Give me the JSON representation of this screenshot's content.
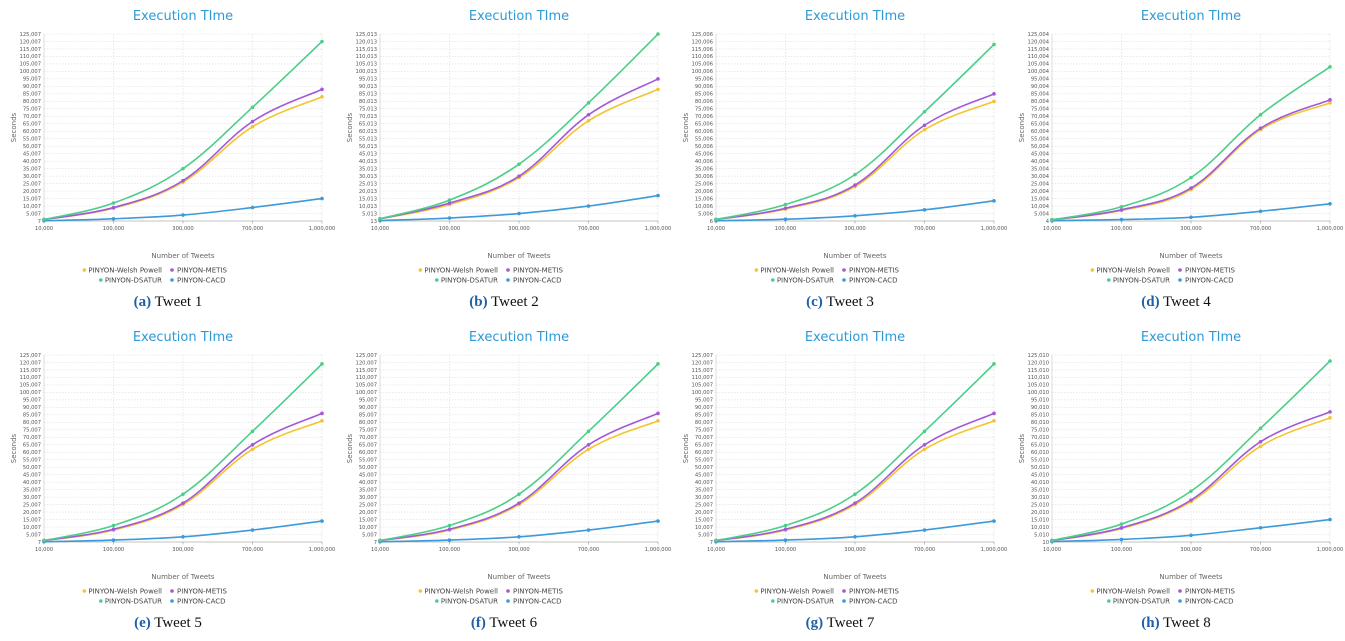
{
  "colors": {
    "PINYON-Welsh Powell": "#f4c430",
    "PINYON-METIS": "#a259d9",
    "PINYON-DSATUR": "#4cce8a",
    "PINYON-CACD": "#3d9ad8"
  },
  "chart_data": [
    {
      "type": "line",
      "title": "Execution TIme",
      "xlabel": "Number of Tweets",
      "ylabel": "Seconds",
      "caption_label": "(a)",
      "caption_text": "Tweet 1",
      "categories": [
        "10,000",
        "100,000",
        "300,000",
        "700,000",
        "1,000,000"
      ],
      "y_ticks": [
        "7",
        "5,007",
        "10,007",
        "15,007",
        "20,007",
        "25,007",
        "30,007",
        "35,007",
        "40,007",
        "45,007",
        "50,007",
        "55,007",
        "60,007",
        "65,007",
        "70,007",
        "75,007",
        "80,007",
        "85,007",
        "90,007",
        "95,007",
        "100,007",
        "105,007",
        "110,007",
        "115,007",
        "120,007",
        "125,007"
      ],
      "ylim": [
        7,
        125007
      ],
      "legend": "bottom",
      "series": [
        {
          "name": "PINYON-Welsh Powell",
          "values": [
            1000,
            8500,
            26000,
            63000,
            83000
          ]
        },
        {
          "name": "PINYON-METIS",
          "values": [
            1000,
            9000,
            27000,
            66500,
            88000
          ]
        },
        {
          "name": "PINYON-DSATUR",
          "values": [
            1000,
            12000,
            35000,
            76000,
            120000
          ]
        },
        {
          "name": "PINYON-CACD",
          "values": [
            200,
            1500,
            4000,
            9000,
            15000
          ]
        }
      ]
    },
    {
      "type": "line",
      "title": "Execution TIme",
      "xlabel": "Number of Tweets",
      "ylabel": "Seconds",
      "caption_label": "(b)",
      "caption_text": "Tweet 2",
      "categories": [
        "10,000",
        "100,000",
        "300,000",
        "700,000",
        "1,000,000"
      ],
      "y_ticks": [
        "13",
        "5,013",
        "10,013",
        "15,013",
        "20,013",
        "25,013",
        "30,013",
        "35,013",
        "40,013",
        "45,013",
        "50,013",
        "55,013",
        "60,013",
        "65,013",
        "70,013",
        "75,013",
        "80,013",
        "85,013",
        "90,013",
        "95,013",
        "100,013",
        "105,013",
        "110,013",
        "115,013",
        "120,013",
        "125,013"
      ],
      "ylim": [
        13,
        125013
      ],
      "legend": "bottom",
      "series": [
        {
          "name": "PINYON-Welsh Powell",
          "values": [
            1500,
            11000,
            29000,
            67000,
            88000
          ]
        },
        {
          "name": "PINYON-METIS",
          "values": [
            1500,
            12000,
            30000,
            71000,
            95000
          ]
        },
        {
          "name": "PINYON-DSATUR",
          "values": [
            1500,
            14000,
            38000,
            79000,
            125000
          ]
        },
        {
          "name": "PINYON-CACD",
          "values": [
            300,
            2000,
            5000,
            10000,
            17000
          ]
        }
      ]
    },
    {
      "type": "line",
      "title": "Execution TIme",
      "xlabel": "Number of Tweets",
      "ylabel": "Seconds",
      "caption_label": "(c)",
      "caption_text": "Tweet 3",
      "categories": [
        "10,000",
        "100,000",
        "300,000",
        "700,000",
        "1,000,000"
      ],
      "y_ticks": [
        "6",
        "5,006",
        "10,006",
        "15,006",
        "20,006",
        "25,006",
        "30,006",
        "35,006",
        "40,006",
        "45,006",
        "50,006",
        "55,006",
        "60,006",
        "65,006",
        "70,006",
        "75,006",
        "80,006",
        "85,006",
        "90,006",
        "95,006",
        "100,006",
        "105,006",
        "110,006",
        "115,006",
        "120,006",
        "125,006"
      ],
      "ylim": [
        6,
        125006
      ],
      "legend": "bottom",
      "series": [
        {
          "name": "PINYON-Welsh Powell",
          "values": [
            1000,
            8000,
            23000,
            61000,
            80000
          ]
        },
        {
          "name": "PINYON-METIS",
          "values": [
            1000,
            8500,
            24000,
            64000,
            85000
          ]
        },
        {
          "name": "PINYON-DSATUR",
          "values": [
            1000,
            11000,
            31000,
            73000,
            118000
          ]
        },
        {
          "name": "PINYON-CACD",
          "values": [
            200,
            1200,
            3500,
            7500,
            13500
          ]
        }
      ]
    },
    {
      "type": "line",
      "title": "Execution TIme",
      "xlabel": "Number of Tweets",
      "ylabel": "Seconds",
      "caption_label": "(d)",
      "caption_text": "Tweet 4",
      "categories": [
        "10,000",
        "100,000",
        "300,000",
        "700,000",
        "1,000,000"
      ],
      "y_ticks": [
        "4",
        "5,004",
        "10,004",
        "15,004",
        "20,004",
        "25,004",
        "30,004",
        "35,004",
        "40,004",
        "45,004",
        "50,004",
        "55,004",
        "60,004",
        "65,004",
        "70,004",
        "75,004",
        "80,004",
        "85,004",
        "90,004",
        "95,004",
        "100,004",
        "105,004",
        "110,004",
        "115,004",
        "120,004",
        "125,004"
      ],
      "ylim": [
        4,
        125004
      ],
      "legend": "bottom",
      "series": [
        {
          "name": "PINYON-Welsh Powell",
          "values": [
            800,
            7000,
            21000,
            61000,
            79000
          ]
        },
        {
          "name": "PINYON-METIS",
          "values": [
            800,
            7500,
            22000,
            62000,
            81000
          ]
        },
        {
          "name": "PINYON-DSATUR",
          "values": [
            800,
            9500,
            29000,
            71000,
            103000
          ]
        },
        {
          "name": "PINYON-CACD",
          "values": [
            200,
            1000,
            2500,
            6500,
            11500
          ]
        }
      ]
    },
    {
      "type": "line",
      "title": "Execution TIme",
      "xlabel": "Number of Tweets",
      "ylabel": "Seconds",
      "caption_label": "(e)",
      "caption_text": "Tweet 5",
      "categories": [
        "10,000",
        "100,000",
        "300,000",
        "700,000",
        "1,000,000"
      ],
      "y_ticks": [
        "7",
        "5,007",
        "10,007",
        "15,007",
        "20,007",
        "25,007",
        "30,007",
        "35,007",
        "40,007",
        "45,007",
        "50,007",
        "55,007",
        "60,007",
        "65,007",
        "70,007",
        "75,007",
        "80,007",
        "85,007",
        "90,007",
        "95,007",
        "100,007",
        "105,007",
        "110,007",
        "115,007",
        "120,007",
        "125,007"
      ],
      "ylim": [
        7,
        125007
      ],
      "legend": "bottom",
      "series": [
        {
          "name": "PINYON-Welsh Powell",
          "values": [
            1000,
            8000,
            25000,
            62000,
            81000
          ]
        },
        {
          "name": "PINYON-METIS",
          "values": [
            1000,
            8500,
            26000,
            65000,
            86000
          ]
        },
        {
          "name": "PINYON-DSATUR",
          "values": [
            1000,
            11000,
            32000,
            74000,
            119000
          ]
        },
        {
          "name": "PINYON-CACD",
          "values": [
            200,
            1300,
            3500,
            8000,
            14000
          ]
        }
      ]
    },
    {
      "type": "line",
      "title": "Execution TIme",
      "xlabel": "Number of Tweets",
      "ylabel": "Seconds",
      "caption_label": "(f)",
      "caption_text": "Tweet 6",
      "categories": [
        "10,000",
        "100,000",
        "300,000",
        "700,000",
        "1,000,000"
      ],
      "y_ticks": [
        "7",
        "5,007",
        "10,007",
        "15,007",
        "20,007",
        "25,007",
        "30,007",
        "35,007",
        "40,007",
        "45,007",
        "50,007",
        "55,007",
        "60,007",
        "65,007",
        "70,007",
        "75,007",
        "80,007",
        "85,007",
        "90,007",
        "95,007",
        "100,007",
        "105,007",
        "110,007",
        "115,007",
        "120,007",
        "125,007"
      ],
      "ylim": [
        7,
        125007
      ],
      "legend": "bottom",
      "series": [
        {
          "name": "PINYON-Welsh Powell",
          "values": [
            1000,
            8000,
            25000,
            62000,
            81000
          ]
        },
        {
          "name": "PINYON-METIS",
          "values": [
            1000,
            8500,
            26000,
            65000,
            86000
          ]
        },
        {
          "name": "PINYON-DSATUR",
          "values": [
            1000,
            11000,
            32000,
            74000,
            119000
          ]
        },
        {
          "name": "PINYON-CACD",
          "values": [
            200,
            1300,
            3500,
            8000,
            14000
          ]
        }
      ]
    },
    {
      "type": "line",
      "title": "Execution TIme",
      "xlabel": "Number of Tweets",
      "ylabel": "Seconds",
      "caption_label": "(g)",
      "caption_text": "Tweet 7",
      "categories": [
        "10,000",
        "100,000",
        "300,000",
        "700,000",
        "1,000,000"
      ],
      "y_ticks": [
        "7",
        "5,007",
        "10,007",
        "15,007",
        "20,007",
        "25,007",
        "30,007",
        "35,007",
        "40,007",
        "45,007",
        "50,007",
        "55,007",
        "60,007",
        "65,007",
        "70,007",
        "75,007",
        "80,007",
        "85,007",
        "90,007",
        "95,007",
        "100,007",
        "105,007",
        "110,007",
        "115,007",
        "120,007",
        "125,007"
      ],
      "ylim": [
        7,
        125007
      ],
      "legend": "bottom",
      "series": [
        {
          "name": "PINYON-Welsh Powell",
          "values": [
            1000,
            8000,
            25000,
            62000,
            81000
          ]
        },
        {
          "name": "PINYON-METIS",
          "values": [
            1000,
            8500,
            26000,
            65000,
            86000
          ]
        },
        {
          "name": "PINYON-DSATUR",
          "values": [
            1000,
            11000,
            32000,
            74000,
            119000
          ]
        },
        {
          "name": "PINYON-CACD",
          "values": [
            200,
            1300,
            3500,
            8000,
            14000
          ]
        }
      ]
    },
    {
      "type": "line",
      "title": "Execution TIme",
      "xlabel": "Number of Tweets",
      "ylabel": "Seconds",
      "caption_label": "(h)",
      "caption_text": "Tweet 8",
      "categories": [
        "10,000",
        "100,000",
        "300,000",
        "700,000",
        "1,000,000"
      ],
      "y_ticks": [
        "10",
        "5,010",
        "10,010",
        "15,010",
        "20,010",
        "25,010",
        "30,010",
        "35,010",
        "40,010",
        "45,010",
        "50,010",
        "55,010",
        "60,010",
        "65,010",
        "70,010",
        "75,010",
        "80,010",
        "85,010",
        "90,010",
        "95,010",
        "100,010",
        "105,010",
        "110,010",
        "115,010",
        "120,010",
        "125,010"
      ],
      "ylim": [
        10,
        125010
      ],
      "legend": "bottom",
      "series": [
        {
          "name": "PINYON-Welsh Powell",
          "values": [
            1000,
            9000,
            27000,
            64000,
            83000
          ]
        },
        {
          "name": "PINYON-METIS",
          "values": [
            1000,
            9500,
            28000,
            67000,
            87000
          ]
        },
        {
          "name": "PINYON-DSATUR",
          "values": [
            1000,
            12000,
            34000,
            76000,
            121000
          ]
        },
        {
          "name": "PINYON-CACD",
          "values": [
            300,
            1700,
            4500,
            9500,
            15000
          ]
        }
      ]
    }
  ]
}
